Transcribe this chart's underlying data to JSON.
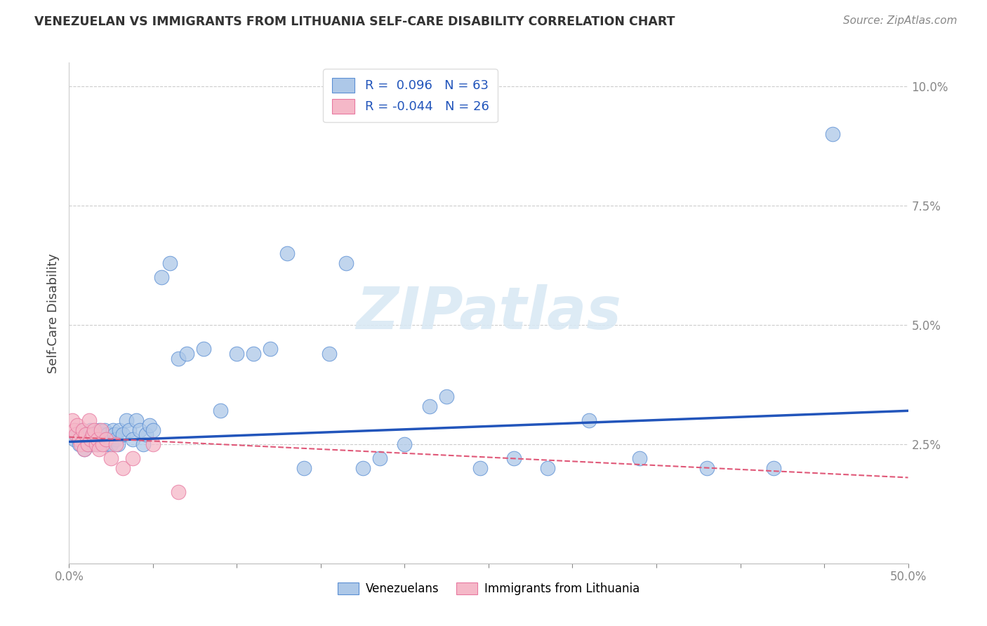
{
  "title": "VENEZUELAN VS IMMIGRANTS FROM LITHUANIA SELF-CARE DISABILITY CORRELATION CHART",
  "source": "Source: ZipAtlas.com",
  "ylabel": "Self-Care Disability",
  "x_min": 0.0,
  "x_max": 0.5,
  "y_min": 0.0,
  "y_max": 0.105,
  "y_ticks": [
    0.025,
    0.05,
    0.075,
    0.1
  ],
  "y_tick_labels": [
    "2.5%",
    "5.0%",
    "7.5%",
    "10.0%"
  ],
  "blue_R": 0.096,
  "blue_N": 63,
  "pink_R": -0.044,
  "pink_N": 26,
  "blue_color": "#adc8e8",
  "blue_edge_color": "#5b8fd4",
  "blue_line_color": "#2255bb",
  "pink_color": "#f5b8c8",
  "pink_edge_color": "#e878a0",
  "pink_line_color": "#e05878",
  "watermark_color": "#d8e8f4",
  "watermark": "ZIPatlas",
  "legend_venezuelans": "Venezuelans",
  "legend_lithuania": "Immigrants from Lithuania",
  "grid_color": "#cccccc",
  "blue_trend_x0": 0.0,
  "blue_trend_x1": 0.5,
  "blue_trend_y0": 0.0255,
  "blue_trend_y1": 0.032,
  "pink_trend_x0": 0.0,
  "pink_trend_x1": 0.5,
  "pink_trend_y0": 0.0265,
  "pink_trend_y1": 0.018,
  "blue_x": [
    0.003,
    0.005,
    0.006,
    0.007,
    0.008,
    0.009,
    0.01,
    0.011,
    0.012,
    0.013,
    0.014,
    0.015,
    0.016,
    0.017,
    0.018,
    0.019,
    0.02,
    0.021,
    0.022,
    0.023,
    0.024,
    0.025,
    0.026,
    0.027,
    0.028,
    0.029,
    0.03,
    0.032,
    0.034,
    0.036,
    0.038,
    0.04,
    0.042,
    0.044,
    0.046,
    0.048,
    0.05,
    0.055,
    0.06,
    0.065,
    0.07,
    0.08,
    0.09,
    0.1,
    0.11,
    0.12,
    0.13,
    0.14,
    0.155,
    0.165,
    0.175,
    0.185,
    0.2,
    0.215,
    0.225,
    0.245,
    0.265,
    0.285,
    0.31,
    0.34,
    0.38,
    0.42,
    0.455
  ],
  "blue_y": [
    0.026,
    0.027,
    0.025,
    0.028,
    0.026,
    0.024,
    0.027,
    0.025,
    0.026,
    0.028,
    0.025,
    0.027,
    0.026,
    0.025,
    0.028,
    0.026,
    0.027,
    0.028,
    0.025,
    0.027,
    0.026,
    0.025,
    0.028,
    0.027,
    0.026,
    0.025,
    0.028,
    0.027,
    0.03,
    0.028,
    0.026,
    0.03,
    0.028,
    0.025,
    0.027,
    0.029,
    0.028,
    0.06,
    0.063,
    0.043,
    0.044,
    0.045,
    0.032,
    0.044,
    0.044,
    0.045,
    0.065,
    0.02,
    0.044,
    0.063,
    0.02,
    0.022,
    0.025,
    0.033,
    0.035,
    0.02,
    0.022,
    0.02,
    0.03,
    0.022,
    0.02,
    0.02,
    0.09
  ],
  "pink_x": [
    0.002,
    0.003,
    0.004,
    0.005,
    0.006,
    0.007,
    0.008,
    0.009,
    0.01,
    0.011,
    0.012,
    0.013,
    0.014,
    0.015,
    0.016,
    0.017,
    0.018,
    0.019,
    0.02,
    0.022,
    0.025,
    0.028,
    0.032,
    0.038,
    0.05,
    0.065
  ],
  "pink_y": [
    0.03,
    0.028,
    0.027,
    0.029,
    0.026,
    0.025,
    0.028,
    0.024,
    0.027,
    0.025,
    0.03,
    0.026,
    0.027,
    0.028,
    0.025,
    0.026,
    0.024,
    0.028,
    0.025,
    0.026,
    0.022,
    0.025,
    0.02,
    0.022,
    0.025,
    0.015
  ]
}
